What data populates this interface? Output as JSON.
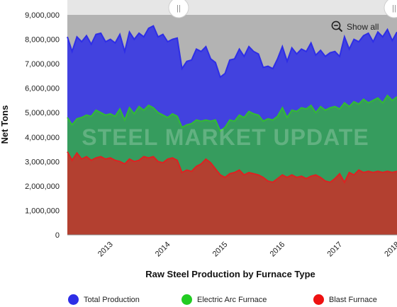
{
  "chart_data": {
    "type": "area",
    "title": "",
    "xlabel": "Raw Steel Production by Furnace Type",
    "ylabel": "Net Tons",
    "ylim": [
      0,
      9000000
    ],
    "y_ticks": [
      0,
      1000000,
      2000000,
      3000000,
      4000000,
      5000000,
      6000000,
      7000000,
      8000000,
      9000000
    ],
    "y_tick_labels": [
      "0",
      "1,000,000",
      "2,000,000",
      "3,000,000",
      "4,000,000",
      "5,000,000",
      "6,000,000",
      "7,000,000",
      "8,000,000",
      "9,000,000"
    ],
    "x_tick_labels": [
      "2013",
      "2014",
      "2015",
      "2016",
      "2017",
      "2018"
    ],
    "x_start": "2012-10",
    "x_end": "2018-07",
    "grid": true,
    "legend_position": "bottom",
    "series": [
      {
        "name": "Total Production",
        "color": "#2e2ee6",
        "values": [
          8100000,
          7500000,
          8100000,
          7900000,
          8150000,
          7800000,
          8200000,
          8250000,
          7900000,
          8000000,
          7850000,
          8200000,
          7500000,
          8300000,
          8000000,
          8250000,
          8100000,
          8450000,
          8550000,
          8100000,
          8200000,
          7900000,
          8000000,
          8050000,
          6800000,
          7100000,
          7150000,
          7600000,
          7500000,
          7700000,
          7200000,
          7050000,
          6450000,
          6600000,
          7150000,
          7200000,
          7600000,
          7300000,
          7700000,
          7500000,
          7400000,
          6850000,
          6900000,
          6800000,
          7200000,
          7700000,
          7100000,
          7650000,
          7400000,
          7600000,
          7500000,
          7850000,
          7350000,
          7550000,
          7300000,
          7450000,
          7500000,
          7300000,
          8100000,
          7600000,
          8000000,
          7900000,
          8150000,
          8250000,
          7900000,
          8300000,
          8100000,
          8400000,
          7950000,
          8300000
        ]
      },
      {
        "name": "Electric Arc Furnace",
        "color": "#33bb33",
        "values": [
          4800000,
          4500000,
          4750000,
          4800000,
          4900000,
          4850000,
          5100000,
          5000000,
          4900000,
          4950000,
          4850000,
          5150000,
          4700000,
          5200000,
          4950000,
          5250000,
          5100000,
          5300000,
          5200000,
          5000000,
          4900000,
          4800000,
          4950000,
          4850000,
          4400000,
          4500000,
          4550000,
          4700000,
          4650000,
          4700000,
          4650000,
          4700000,
          4250000,
          4400000,
          4700000,
          4650000,
          4900000,
          4800000,
          5050000,
          4950000,
          4900000,
          4650000,
          4750000,
          4700000,
          4850000,
          5200000,
          4800000,
          5100000,
          5050000,
          5200000,
          5150000,
          5300000,
          5000000,
          5250000,
          5100000,
          5200000,
          5250000,
          5150000,
          5400000,
          5250000,
          5450000,
          5350000,
          5550000,
          5400000,
          5500000,
          5600000,
          5400000,
          5700000,
          5500000,
          5650000
        ]
      },
      {
        "name": "Blast Furnace",
        "color": "#dd2222",
        "values": [
          3400000,
          3050000,
          3350000,
          3100000,
          3200000,
          3050000,
          3150000,
          3200000,
          3100000,
          3150000,
          3050000,
          3000000,
          2900000,
          3100000,
          3000000,
          3050000,
          3200000,
          3150000,
          3200000,
          3000000,
          2950000,
          3100000,
          3150000,
          3050000,
          2550000,
          2650000,
          2600000,
          2800000,
          2900000,
          3100000,
          2950000,
          2700000,
          2450000,
          2350000,
          2500000,
          2550000,
          2650000,
          2450000,
          2550000,
          2500000,
          2450000,
          2350000,
          2200000,
          2150000,
          2300000,
          2450000,
          2350000,
          2450000,
          2350000,
          2400000,
          2300000,
          2400000,
          2450000,
          2350000,
          2200000,
          2150000,
          2300000,
          2500000,
          2150000,
          2550000,
          2450000,
          2650000,
          2550000,
          2600000,
          2550000,
          2600000,
          2550000,
          2600000,
          2550000,
          2600000
        ]
      }
    ]
  },
  "watermark": "STEEL MARKET UPDATE",
  "navigator": {
    "left_handle_glyph": "||",
    "right_handle_glyph": "||"
  },
  "controls": {
    "show_all_label": "Show all",
    "show_all_icon": "zoom-out-icon"
  },
  "legend": [
    {
      "label": "Total Production",
      "color": "#2e2ee6"
    },
    {
      "label": "Electric Arc Furnace",
      "color": "#22cc22"
    },
    {
      "label": "Blast Furnace",
      "color": "#ee1111"
    }
  ]
}
